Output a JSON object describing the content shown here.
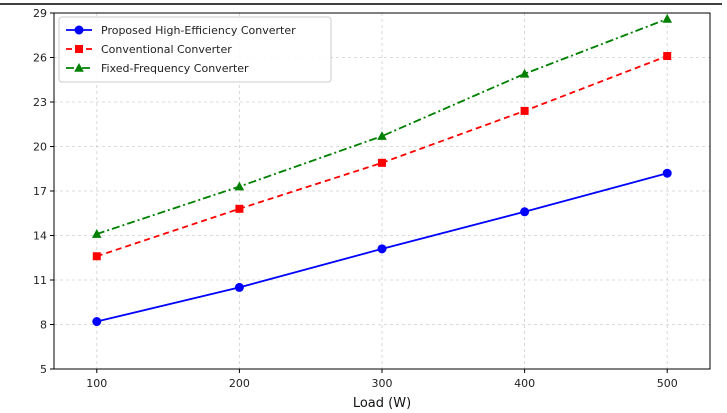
{
  "chart_data": {
    "type": "line",
    "title": "",
    "xlabel": "Load (W)",
    "ylabel": "",
    "x": [
      100,
      200,
      300,
      400,
      500
    ],
    "xticks": [
      100,
      200,
      300,
      400,
      500
    ],
    "yticks": [
      5,
      8,
      11,
      14,
      17,
      20,
      23,
      26,
      29
    ],
    "xlim": [
      70,
      530
    ],
    "ylim": [
      5,
      29
    ],
    "grid": true,
    "legend_position": "top-left",
    "series": [
      {
        "name": "Proposed High-Efficiency Converter",
        "values": [
          8.2,
          10.5,
          13.1,
          15.6,
          18.2
        ],
        "color": "#0000ff",
        "line_style": "solid",
        "marker": "circle"
      },
      {
        "name": "Conventional Converter",
        "values": [
          12.6,
          15.8,
          18.9,
          22.4,
          26.1
        ],
        "color": "#ff0000",
        "line_style": "dashed",
        "marker": "square"
      },
      {
        "name": "Fixed-Frequency Converter",
        "values": [
          14.1,
          17.3,
          20.7,
          24.9,
          28.6
        ],
        "color": "#008000",
        "line_style": "dashdot",
        "marker": "triangle"
      }
    ]
  }
}
